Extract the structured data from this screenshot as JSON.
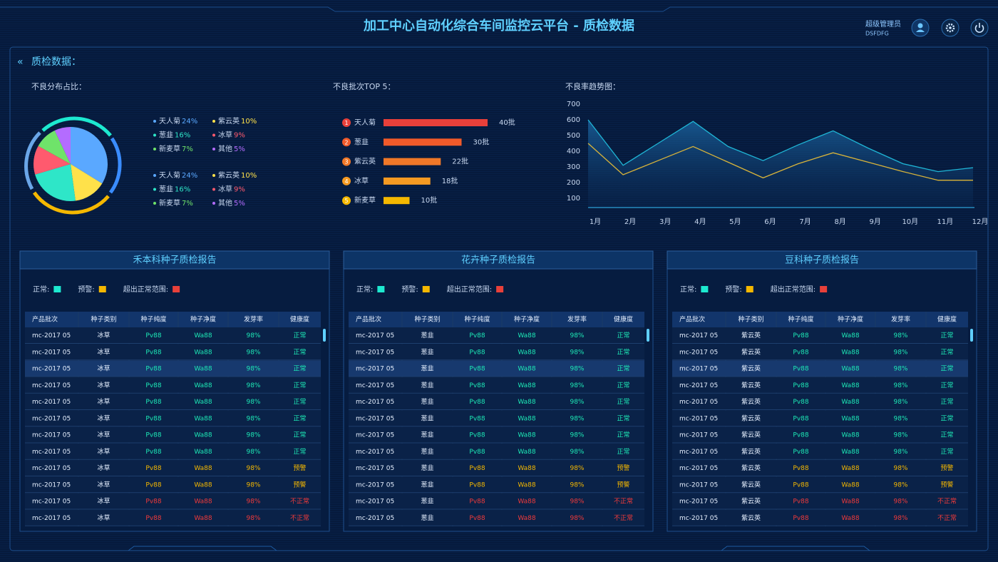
{
  "header": {
    "title": "加工中心自动化综合车间监控云平台 - 质检数据",
    "user_role": "超级管理员",
    "user_id": "DSFDFG"
  },
  "section_title": "质检数据：",
  "chart_data": [
    {
      "type": "pie",
      "title": "不良分布占比：",
      "categories": [
        "天人菊",
        "紫云英",
        "葱韭",
        "冰草",
        "新麦草",
        "其他"
      ],
      "values": [
        24,
        10,
        16,
        9,
        7,
        5
      ],
      "value_labels": [
        "24%",
        "10%",
        "16%",
        "9%",
        "7%",
        "5%"
      ],
      "colors": [
        "#5aa8ff",
        "#ffe14a",
        "#2ee6c8",
        "#ff5a6e",
        "#6fe36a",
        "#b46cff"
      ]
    },
    {
      "type": "bar",
      "title": "不良批次TOP 5：",
      "ranks": [
        1,
        2,
        3,
        4,
        5
      ],
      "categories": [
        "天人菊",
        "葱韭",
        "紫云英",
        "冰草",
        "新麦草"
      ],
      "values": [
        40,
        30,
        22,
        18,
        10
      ],
      "value_labels": [
        "40批",
        "30批",
        "22批",
        "18批",
        "10批"
      ],
      "colors": [
        "#e8403a",
        "#f05a2a",
        "#f07828",
        "#f59a22",
        "#f5b800"
      ]
    },
    {
      "type": "line",
      "title": "不良率趋势图：",
      "categories": [
        "1月",
        "2月",
        "3月",
        "4月",
        "5月",
        "6月",
        "7月",
        "8月",
        "9月",
        "10月",
        "11月",
        "12月"
      ],
      "series": [
        {
          "color": "#1fb6d6",
          "values": [
            600,
            310,
            450,
            590,
            430,
            340,
            440,
            530,
            420,
            320,
            270,
            295
          ]
        },
        {
          "color": "#d9b43a",
          "values": [
            450,
            250,
            340,
            430,
            330,
            230,
            320,
            390,
            330,
            270,
            215,
            215
          ]
        }
      ],
      "ylim": [
        50,
        700
      ],
      "yticks": [
        100,
        200,
        300,
        400,
        500,
        600,
        700
      ]
    }
  ],
  "reports": [
    {
      "title": "禾本科种子质检报告",
      "legend": [
        {
          "label": "正常:",
          "color": "#1de9d0"
        },
        {
          "label": "预警:",
          "color": "#f5b800"
        },
        {
          "label": "超出正常范围:",
          "color": "#e8403a"
        }
      ],
      "columns": [
        "产品批次",
        "种子类别",
        "种子纯度",
        "种子净度",
        "发芽率",
        "健康度"
      ],
      "rows": [
        {
          "cells": [
            "mc-2017 05",
            "冰草",
            "Pv88",
            "Wa88",
            "98%",
            "正常"
          ],
          "color": "#1de9b6"
        },
        {
          "cells": [
            "mc-2017 05",
            "冰草",
            "Pv88",
            "Wa88",
            "98%",
            "正常"
          ],
          "color": "#1de9b6"
        },
        {
          "cells": [
            "mc-2017 05",
            "冰草",
            "Pv88",
            "Wa88",
            "98%",
            "正常"
          ],
          "color": "#1de9b6"
        },
        {
          "cells": [
            "mc-2017 05",
            "冰草",
            "Pv88",
            "Wa88",
            "98%",
            "正常"
          ],
          "color": "#1de9b6"
        },
        {
          "cells": [
            "mc-2017 05",
            "冰草",
            "Pv88",
            "Wa88",
            "98%",
            "正常"
          ],
          "color": "#1de9b6"
        },
        {
          "cells": [
            "mc-2017 05",
            "冰草",
            "Pv88",
            "Wa88",
            "98%",
            "正常"
          ],
          "color": "#1de9b6"
        },
        {
          "cells": [
            "mc-2017 05",
            "冰草",
            "Pv88",
            "Wa88",
            "98%",
            "正常"
          ],
          "color": "#1de9b6"
        },
        {
          "cells": [
            "mc-2017 05",
            "冰草",
            "Pv88",
            "Wa88",
            "98%",
            "正常"
          ],
          "color": "#1de9b6"
        },
        {
          "cells": [
            "mc-2017 05",
            "冰草",
            "Pv88",
            "Wa88",
            "98%",
            "预警"
          ],
          "color": "#f5b800"
        },
        {
          "cells": [
            "mc-2017 05",
            "冰草",
            "Pv88",
            "Wa88",
            "98%",
            "预警"
          ],
          "color": "#f5b800"
        },
        {
          "cells": [
            "mc-2017 05",
            "冰草",
            "Pv88",
            "Wa88",
            "98%",
            "不正常"
          ],
          "color": "#f03a3a"
        },
        {
          "cells": [
            "mc-2017 05",
            "冰草",
            "Pv88",
            "Wa88",
            "98%",
            "不正常"
          ],
          "color": "#f03a3a"
        }
      ]
    },
    {
      "title": "花卉种子质检报告",
      "legend": [
        {
          "label": "正常:",
          "color": "#1de9d0"
        },
        {
          "label": "预警:",
          "color": "#f5b800"
        },
        {
          "label": "超出正常范围:",
          "color": "#e8403a"
        }
      ],
      "columns": [
        "产品批次",
        "种子类别",
        "种子纯度",
        "种子净度",
        "发芽率",
        "健康度"
      ],
      "rows": [
        {
          "cells": [
            "mc-2017 05",
            "葱韭",
            "Pv88",
            "Wa88",
            "98%",
            "正常"
          ],
          "color": "#1de9b6"
        },
        {
          "cells": [
            "mc-2017 05",
            "葱韭",
            "Pv88",
            "Wa88",
            "98%",
            "正常"
          ],
          "color": "#1de9b6"
        },
        {
          "cells": [
            "mc-2017 05",
            "葱韭",
            "Pv88",
            "Wa88",
            "98%",
            "正常"
          ],
          "color": "#1de9b6"
        },
        {
          "cells": [
            "mc-2017 05",
            "葱韭",
            "Pv88",
            "Wa88",
            "98%",
            "正常"
          ],
          "color": "#1de9b6"
        },
        {
          "cells": [
            "mc-2017 05",
            "葱韭",
            "Pv88",
            "Wa88",
            "98%",
            "正常"
          ],
          "color": "#1de9b6"
        },
        {
          "cells": [
            "mc-2017 05",
            "葱韭",
            "Pv88",
            "Wa88",
            "98%",
            "正常"
          ],
          "color": "#1de9b6"
        },
        {
          "cells": [
            "mc-2017 05",
            "葱韭",
            "Pv88",
            "Wa88",
            "98%",
            "正常"
          ],
          "color": "#1de9b6"
        },
        {
          "cells": [
            "mc-2017 05",
            "葱韭",
            "Pv88",
            "Wa88",
            "98%",
            "正常"
          ],
          "color": "#1de9b6"
        },
        {
          "cells": [
            "mc-2017 05",
            "葱韭",
            "Pv88",
            "Wa88",
            "98%",
            "预警"
          ],
          "color": "#f5b800"
        },
        {
          "cells": [
            "mc-2017 05",
            "葱韭",
            "Pv88",
            "Wa88",
            "98%",
            "预警"
          ],
          "color": "#f5b800"
        },
        {
          "cells": [
            "mc-2017 05",
            "葱韭",
            "Pv88",
            "Wa88",
            "98%",
            "不正常"
          ],
          "color": "#f03a3a"
        },
        {
          "cells": [
            "mc-2017 05",
            "葱韭",
            "Pv88",
            "Wa88",
            "98%",
            "不正常"
          ],
          "color": "#f03a3a"
        }
      ]
    },
    {
      "title": "豆科种子质检报告",
      "legend": [
        {
          "label": "正常:",
          "color": "#1de9d0"
        },
        {
          "label": "预警:",
          "color": "#f5b800"
        },
        {
          "label": "超出正常范围:",
          "color": "#e8403a"
        }
      ],
      "columns": [
        "产品批次",
        "种子类别",
        "种子纯度",
        "种子净度",
        "发芽率",
        "健康度"
      ],
      "rows": [
        {
          "cells": [
            "mc-2017 05",
            "紫云英",
            "Pv88",
            "Wa88",
            "98%",
            "正常"
          ],
          "color": "#1de9b6"
        },
        {
          "cells": [
            "mc-2017 05",
            "紫云英",
            "Pv88",
            "Wa88",
            "98%",
            "正常"
          ],
          "color": "#1de9b6"
        },
        {
          "cells": [
            "mc-2017 05",
            "紫云英",
            "Pv88",
            "Wa88",
            "98%",
            "正常"
          ],
          "color": "#1de9b6"
        },
        {
          "cells": [
            "mc-2017 05",
            "紫云英",
            "Pv88",
            "Wa88",
            "98%",
            "正常"
          ],
          "color": "#1de9b6"
        },
        {
          "cells": [
            "mc-2017 05",
            "紫云英",
            "Pv88",
            "Wa88",
            "98%",
            "正常"
          ],
          "color": "#1de9b6"
        },
        {
          "cells": [
            "mc-2017 05",
            "紫云英",
            "Pv88",
            "Wa88",
            "98%",
            "正常"
          ],
          "color": "#1de9b6"
        },
        {
          "cells": [
            "mc-2017 05",
            "紫云英",
            "Pv88",
            "Wa88",
            "98%",
            "正常"
          ],
          "color": "#1de9b6"
        },
        {
          "cells": [
            "mc-2017 05",
            "紫云英",
            "Pv88",
            "Wa88",
            "98%",
            "正常"
          ],
          "color": "#1de9b6"
        },
        {
          "cells": [
            "mc-2017 05",
            "紫云英",
            "Pv88",
            "Wa88",
            "98%",
            "预警"
          ],
          "color": "#f5b800"
        },
        {
          "cells": [
            "mc-2017 05",
            "紫云英",
            "Pv88",
            "Wa88",
            "98%",
            "预警"
          ],
          "color": "#f5b800"
        },
        {
          "cells": [
            "mc-2017 05",
            "紫云英",
            "Pv88",
            "Wa88",
            "98%",
            "不正常"
          ],
          "color": "#f03a3a"
        },
        {
          "cells": [
            "mc-2017 05",
            "紫云英",
            "Pv88",
            "Wa88",
            "98%",
            "不正常"
          ],
          "color": "#f03a3a"
        }
      ]
    }
  ]
}
